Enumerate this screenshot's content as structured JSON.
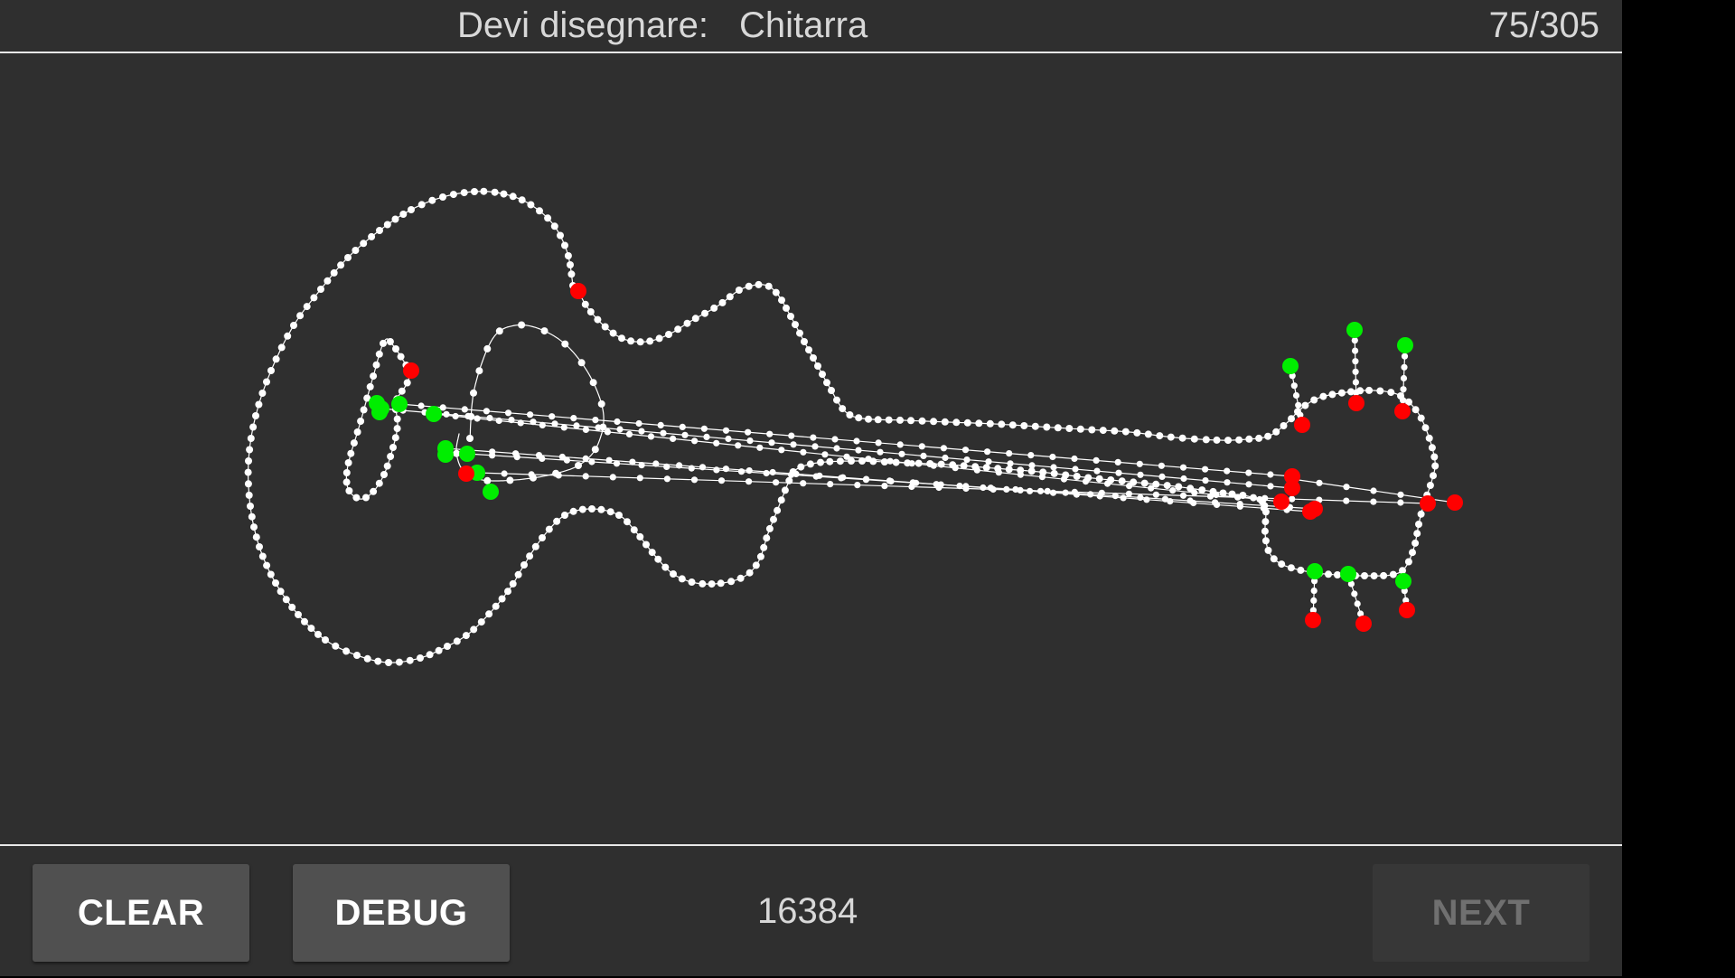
{
  "header": {
    "prompt_label": "Devi disegnare:",
    "prompt_word": "Chitarra",
    "progress": "75/305"
  },
  "footer": {
    "clear_label": "CLEAR",
    "debug_label": "DEBUG",
    "score": "16384",
    "next_label": "NEXT"
  },
  "colors": {
    "background": "#2f2f2f",
    "stroke": "#ffffff",
    "start_point": "#00ee00",
    "end_point": "#ff0000"
  }
}
